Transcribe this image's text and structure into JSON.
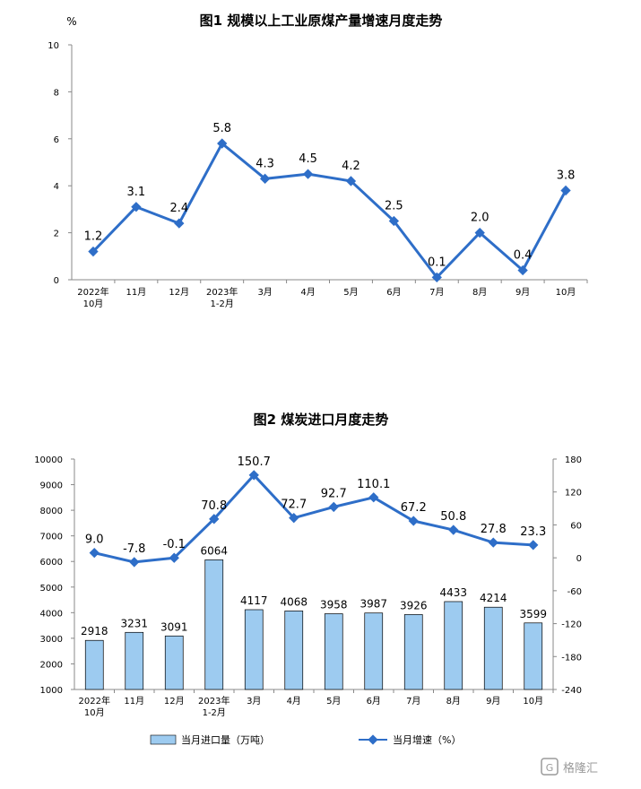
{
  "chart_data": [
    {
      "type": "line",
      "title": "图1  规模以上工业原煤产量增速月度走势",
      "ylabel": "%",
      "ylim": [
        0,
        10
      ],
      "yticks": [
        0,
        2,
        4,
        6,
        8,
        10
      ],
      "categories": [
        "2022年\n10月",
        "11月",
        "12月",
        "2023年\n1-2月",
        "3月",
        "4月",
        "5月",
        "6月",
        "7月",
        "8月",
        "9月",
        "10月"
      ],
      "series": [
        {
          "values": [
            1.2,
            3.1,
            2.4,
            5.8,
            4.3,
            4.5,
            4.2,
            2.5,
            0.1,
            2.0,
            0.4,
            3.8
          ],
          "labels": [
            "1.2",
            "3.1",
            "2.4",
            "5.8",
            "4.3",
            "4.5",
            "4.2",
            "2.5",
            "0.1",
            "2.0",
            "0.4",
            "3.8"
          ]
        }
      ],
      "color": "#2e6ec8",
      "grid": false,
      "legend": "none"
    },
    {
      "type": "bar",
      "title": "图2  煤炭进口月度走势",
      "categories": [
        "2022年\n10月",
        "11月",
        "12月",
        "2023年\n1-2月",
        "3月",
        "4月",
        "5月",
        "6月",
        "7月",
        "8月",
        "9月",
        "10月"
      ],
      "ylim": [
        1000,
        10000
      ],
      "yticks": [
        1000,
        2000,
        3000,
        4000,
        5000,
        6000,
        7000,
        8000,
        9000,
        10000
      ],
      "y2lim": [
        -240,
        180
      ],
      "y2ticks": [
        -240,
        -180,
        -120,
        -60,
        0,
        60,
        120,
        180
      ],
      "series": [
        {
          "name": "当月进口量（万吨）",
          "type": "bar",
          "axis": "left",
          "values": [
            2918,
            3231,
            3091,
            6064,
            4117,
            4068,
            3958,
            3987,
            3926,
            4433,
            4214,
            3599
          ],
          "labels": [
            "2918",
            "3231",
            "3091",
            "6064",
            "4117",
            "4068",
            "3958",
            "3987",
            "3926",
            "4433",
            "4214",
            "3599"
          ],
          "color": "#9dcbf0"
        },
        {
          "name": "当月增速（%）",
          "type": "line",
          "axis": "right",
          "values": [
            9.0,
            -7.8,
            -0.1,
            70.8,
            150.7,
            72.7,
            92.7,
            110.1,
            67.2,
            50.8,
            27.8,
            23.3
          ],
          "labels": [
            "9.0",
            "-7.8",
            "-0.1",
            "70.8",
            "150.7",
            "72.7",
            "92.7",
            "110.1",
            "67.2",
            "50.8",
            "27.8",
            "23.3"
          ],
          "color": "#2e6ec8"
        }
      ],
      "grid": false,
      "legend": "bottom"
    }
  ],
  "watermark": "格隆汇"
}
